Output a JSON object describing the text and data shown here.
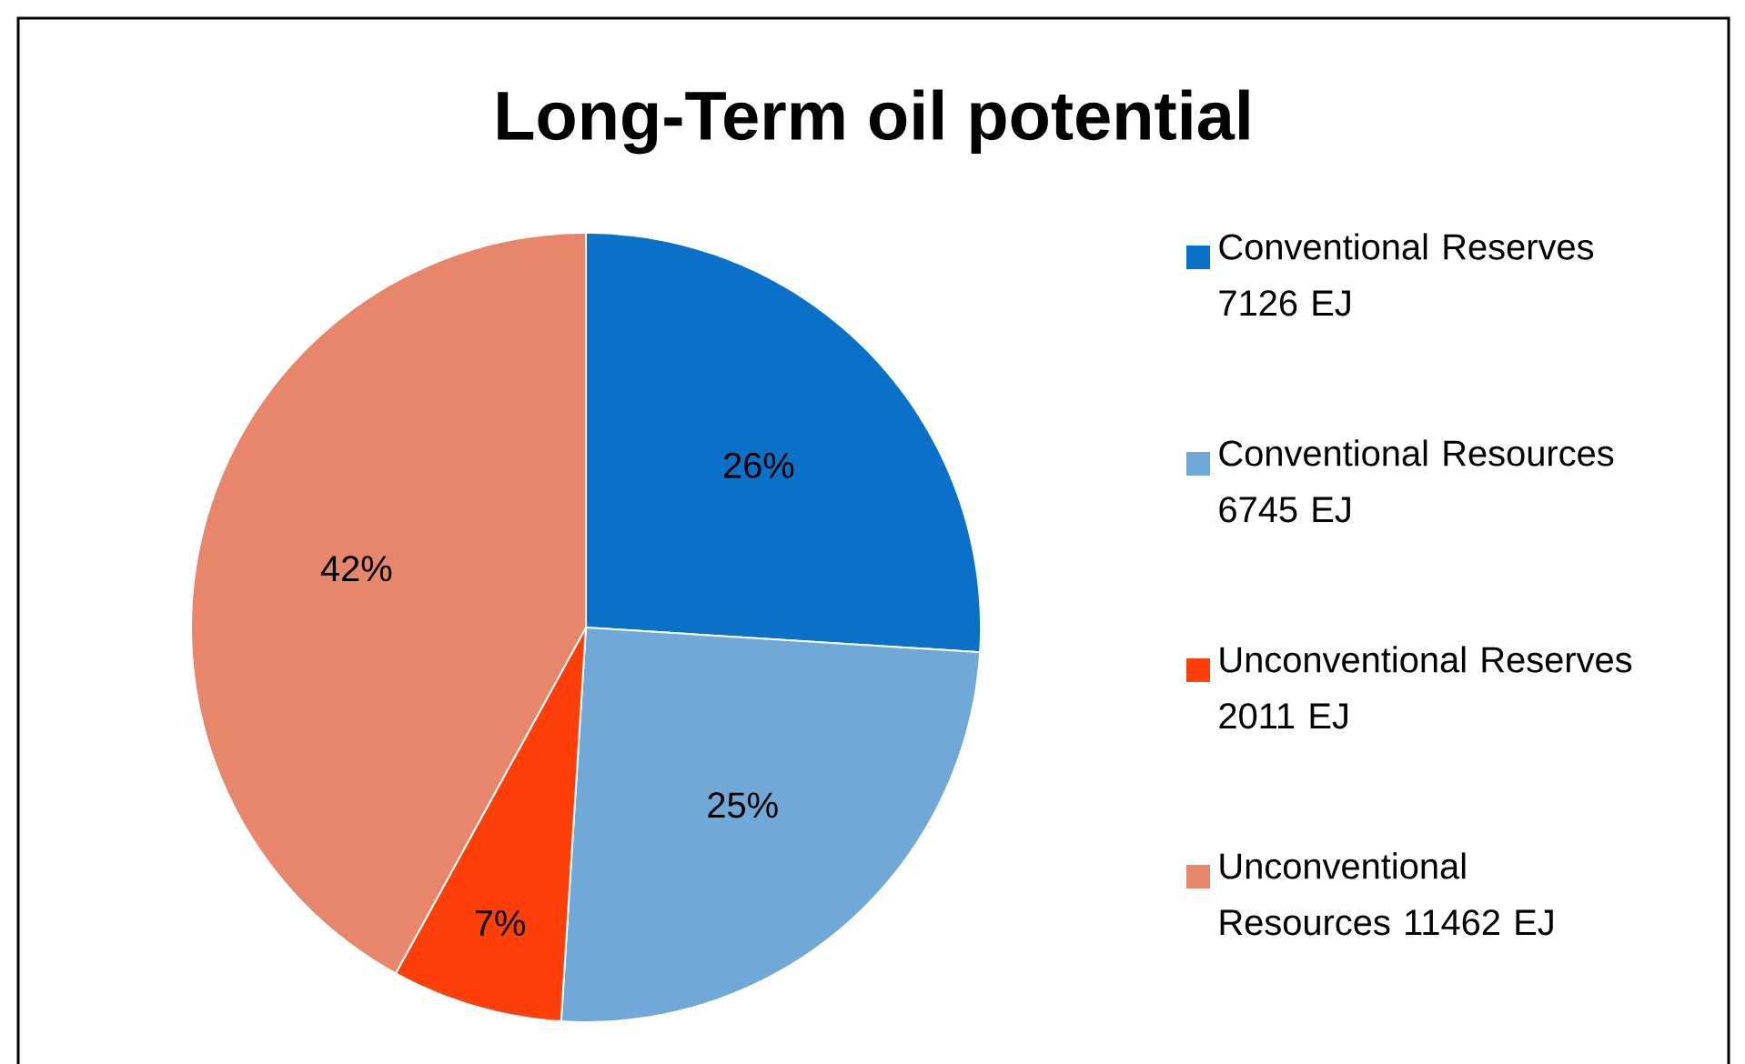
{
  "chart_data": {
    "type": "pie",
    "title": "Long-Term oil potential",
    "categories": [
      "Conventional Reserves 7126 EJ",
      "Conventional Resources 6745 EJ",
      "Unconventional Reserves 2011 EJ",
      "Unconventional Resources 11462 EJ"
    ],
    "values": [
      26,
      25,
      7,
      42
    ],
    "value_labels": [
      "26%",
      "25%",
      "7%",
      "42%"
    ],
    "colors": [
      "#0a70c8",
      "#70a8d8",
      "#ff3f0a",
      "#e8866c"
    ],
    "legend": "right"
  }
}
